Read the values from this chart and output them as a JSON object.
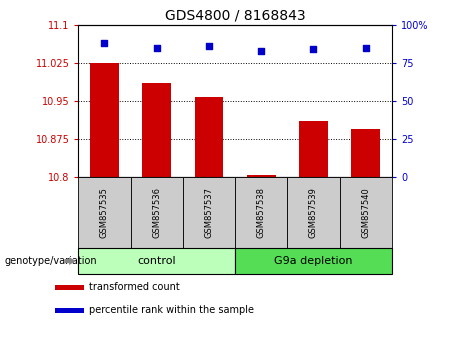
{
  "title": "GDS4800 / 8168843",
  "samples": [
    "GSM857535",
    "GSM857536",
    "GSM857537",
    "GSM857538",
    "GSM857539",
    "GSM857540"
  ],
  "bar_values": [
    11.025,
    10.985,
    10.958,
    10.803,
    10.91,
    10.895
  ],
  "bar_bottom": 10.8,
  "blue_dot_values": [
    88,
    85,
    86,
    83,
    84,
    85
  ],
  "bar_color": "#cc0000",
  "dot_color": "#0000cc",
  "ylim_left": [
    10.8,
    11.1
  ],
  "ylim_right": [
    0,
    100
  ],
  "yticks_left": [
    10.8,
    10.875,
    10.95,
    11.025,
    11.1
  ],
  "yticks_right": [
    0,
    25,
    50,
    75,
    100
  ],
  "ytick_labels_left": [
    "10.8",
    "10.875",
    "10.95",
    "11.025",
    "11.1"
  ],
  "ytick_labels_right": [
    "0",
    "25",
    "50",
    "75",
    "100%"
  ],
  "grid_values": [
    11.025,
    10.95,
    10.875
  ],
  "groups": [
    {
      "label": "control",
      "start": 0,
      "end": 3,
      "color": "#bbffbb"
    },
    {
      "label": "G9a depletion",
      "start": 3,
      "end": 6,
      "color": "#55dd55"
    }
  ],
  "group_label_prefix": "genotype/variation",
  "legend_items": [
    {
      "color": "#cc0000",
      "label": "transformed count"
    },
    {
      "color": "#0000cc",
      "label": "percentile rank within the sample"
    }
  ],
  "bar_width": 0.55,
  "background_color": "#ffffff",
  "plot_bg": "#ffffff",
  "tick_box_color": "#cccccc"
}
